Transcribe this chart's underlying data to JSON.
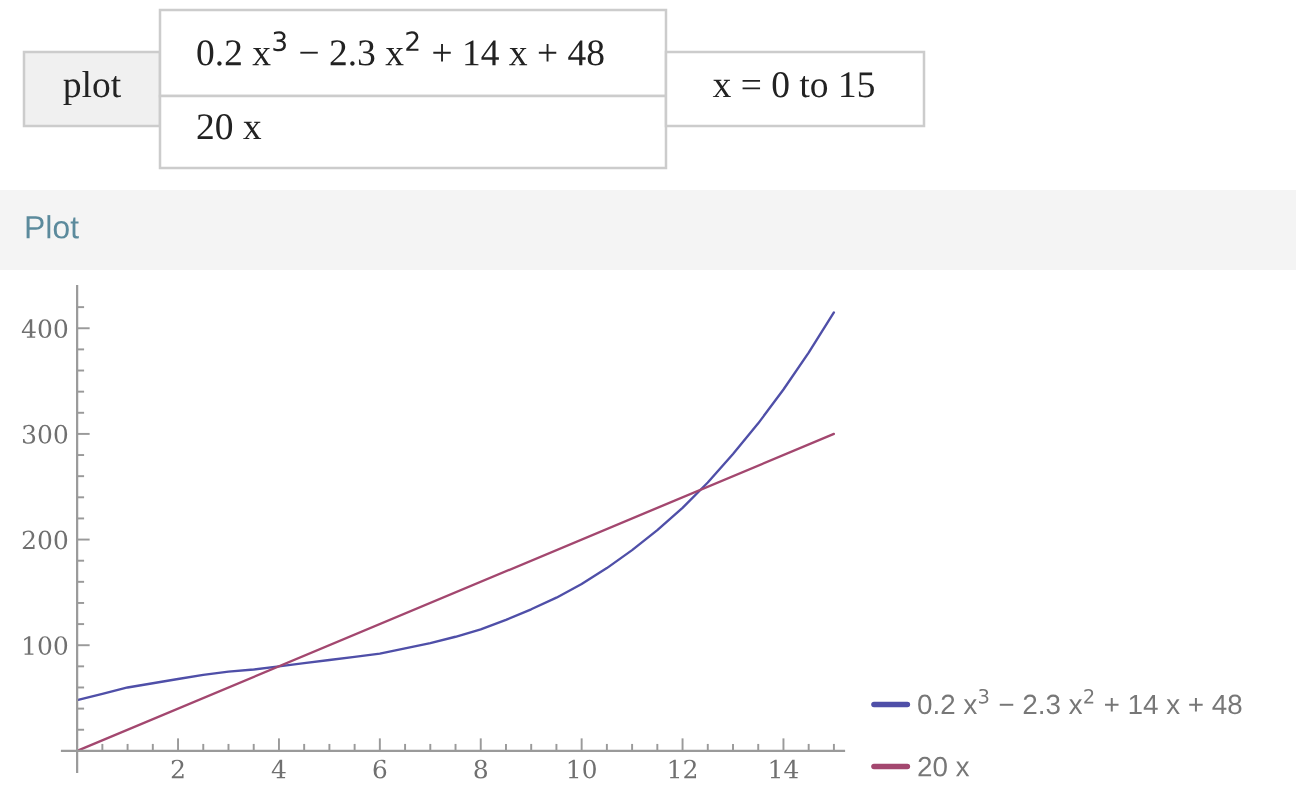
{
  "chart_data": {
    "type": "line",
    "title": "Plot",
    "annotations": [
      "plot",
      "0.2 x$^{3}$ − 2.3 x$^{2}$ + 14 x + 48",
      "20 x",
      "x = 0 to 15"
    ],
    "series": [
      {
        "name": "0.2 x$^{3}$ − 2.3 x$^{2}$ + 14 x + 48",
        "color": "#4f4fa8",
        "x": [
          0,
          0.5,
          1,
          1.5,
          2,
          2.5,
          3,
          3.5,
          4,
          4.5,
          5,
          5.5,
          6,
          6.5,
          7,
          7.5,
          8,
          8.5,
          9,
          9.5,
          10,
          10.5,
          11,
          11.5,
          12,
          12.5,
          13,
          13.5,
          14,
          14.5,
          15
        ],
        "values": [
          48,
          54,
          60,
          64,
          68,
          72,
          75,
          77,
          80,
          83,
          86,
          89,
          92,
          97,
          102,
          108,
          115,
          124,
          134,
          145,
          158,
          173,
          190,
          209,
          230,
          254,
          281,
          310,
          342,
          377,
          415
        ]
      },
      {
        "name": "20 x",
        "color": "#a3476f",
        "x": [
          0,
          15
        ],
        "values": [
          0,
          300
        ]
      }
    ],
    "xlim": [
      -0.3,
      15.2
    ],
    "ylim": [
      -20,
      440
    ],
    "xticks": [
      {
        "value": 0.5,
        "label": null
      },
      {
        "value": 1,
        "label": null
      },
      {
        "value": 1.5,
        "label": null
      },
      2,
      {
        "value": 2.5,
        "label": null
      },
      {
        "value": 3,
        "label": null
      },
      {
        "value": 3.5,
        "label": null
      },
      4,
      {
        "value": 4.5,
        "label": null
      },
      {
        "value": 5,
        "label": null
      },
      {
        "value": 5.5,
        "label": null
      },
      6,
      {
        "value": 6.5,
        "label": null
      },
      {
        "value": 7,
        "label": null
      },
      {
        "value": 7.5,
        "label": null
      },
      8,
      {
        "value": 8.5,
        "label": null
      },
      {
        "value": 9,
        "label": null
      },
      {
        "value": 9.5,
        "label": null
      },
      10,
      {
        "value": 10.5,
        "label": null
      },
      {
        "value": 11,
        "label": null
      },
      {
        "value": 11.5,
        "label": null
      },
      12,
      {
        "value": 12.5,
        "label": null
      },
      {
        "value": 13,
        "label": null
      },
      {
        "value": 13.5,
        "label": null
      },
      14,
      {
        "value": 14.5,
        "label": null
      },
      {
        "value": 15,
        "label": null
      }
    ],
    "yticks": [
      {
        "value": 20,
        "label": null
      },
      {
        "value": 40,
        "label": null
      },
      {
        "value": 60,
        "label": null
      },
      {
        "value": 80,
        "label": null
      },
      100,
      {
        "value": 120,
        "label": null
      },
      {
        "value": 140,
        "label": null
      },
      {
        "value": 160,
        "label": null
      },
      {
        "value": 180,
        "label": null
      },
      200,
      {
        "value": 220,
        "label": null
      },
      {
        "value": 240,
        "label": null
      },
      {
        "value": 260,
        "label": null
      },
      {
        "value": 280,
        "label": null
      },
      300,
      {
        "value": 320,
        "label": null
      },
      {
        "value": 340,
        "label": null
      },
      {
        "value": 360,
        "label": null
      },
      {
        "value": 380,
        "label": null
      },
      400,
      {
        "value": 420,
        "label": null
      }
    ],
    "legend": "bottom right"
  }
}
